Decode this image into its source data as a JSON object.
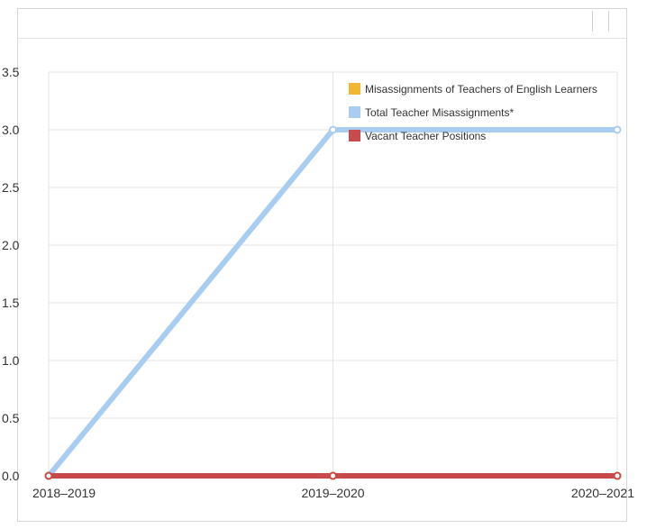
{
  "chart_data": {
    "type": "line",
    "categories": [
      "2018–2019",
      "2019–2020",
      "2020–2021"
    ],
    "ylim": [
      0,
      3.5
    ],
    "yticks": [
      "0.0",
      "0.5",
      "1.0",
      "1.5",
      "2.0",
      "2.5",
      "3.0",
      "3.5"
    ],
    "grid": true,
    "legend_position": "top-right",
    "series": [
      {
        "name": "Misassignments of Teachers of English Learners",
        "values": [
          0,
          0,
          0
        ],
        "color": "#f2b632"
      },
      {
        "name": "Total Teacher Misassignments*",
        "values": [
          0,
          3,
          3
        ],
        "color": "#a8cdf0"
      },
      {
        "name": "Vacant Teacher Positions",
        "values": [
          0,
          0,
          0
        ],
        "color": "#c94a4a"
      }
    ]
  }
}
